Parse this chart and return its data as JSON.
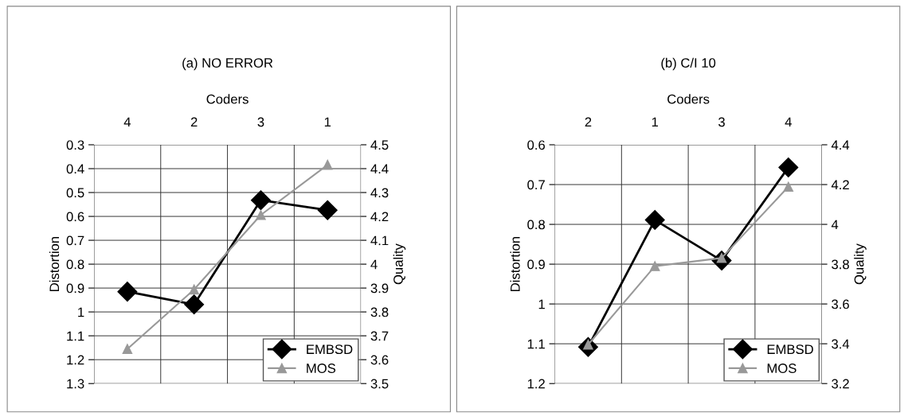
{
  "chart_data": [
    {
      "type": "line",
      "title": "(a) NO ERROR",
      "xlabel": "Coders",
      "ylabel": "Distortion",
      "y2label": "Quality",
      "categories": [
        "4",
        "2",
        "3",
        "1"
      ],
      "series": [
        {
          "name": "EMBSD",
          "color": "#000000",
          "marker": "diamond",
          "values": [
            0.915,
            0.969,
            0.532,
            0.574
          ]
        },
        {
          "name": "MOS",
          "color": "#999999",
          "marker": "triangle",
          "axis": "y2",
          "values": [
            3.645,
            3.894,
            4.206,
            4.416
          ]
        }
      ],
      "ylim": [
        1.3,
        0.3
      ],
      "yticks": [
        0.3,
        0.4,
        0.5,
        0.6,
        0.7,
        0.8,
        0.9,
        1,
        1.1,
        1.2,
        1.3
      ],
      "y2lim": [
        3.5,
        4.5
      ],
      "y2ticks": [
        3.5,
        3.6,
        3.7,
        3.8,
        3.9,
        4,
        4.1,
        4.2,
        4.3,
        4.4,
        4.5
      ],
      "grid": true,
      "legend": "bottom right"
    },
    {
      "type": "line",
      "title": "(b) C/I 10",
      "xlabel": "Coders",
      "ylabel": "Distortion",
      "y2label": "Quality",
      "categories": [
        "2",
        "1",
        "3",
        "4"
      ],
      "series": [
        {
          "name": "EMBSD",
          "color": "#000000",
          "marker": "diamond",
          "values": [
            1.108,
            0.789,
            0.891,
            0.657
          ]
        },
        {
          "name": "MOS",
          "color": "#999999",
          "marker": "triangle",
          "axis": "y2",
          "values": [
            3.396,
            3.79,
            3.831,
            4.189
          ]
        }
      ],
      "ylim": [
        1.2,
        0.6
      ],
      "yticks": [
        0.6,
        0.7,
        0.8,
        0.9,
        1,
        1.1,
        1.2
      ],
      "y2lim": [
        3.2,
        4.4
      ],
      "y2ticks": [
        3.2,
        3.4,
        3.6,
        3.8,
        4,
        4.2,
        4.4
      ],
      "grid": true,
      "legend": "bottom right"
    }
  ]
}
